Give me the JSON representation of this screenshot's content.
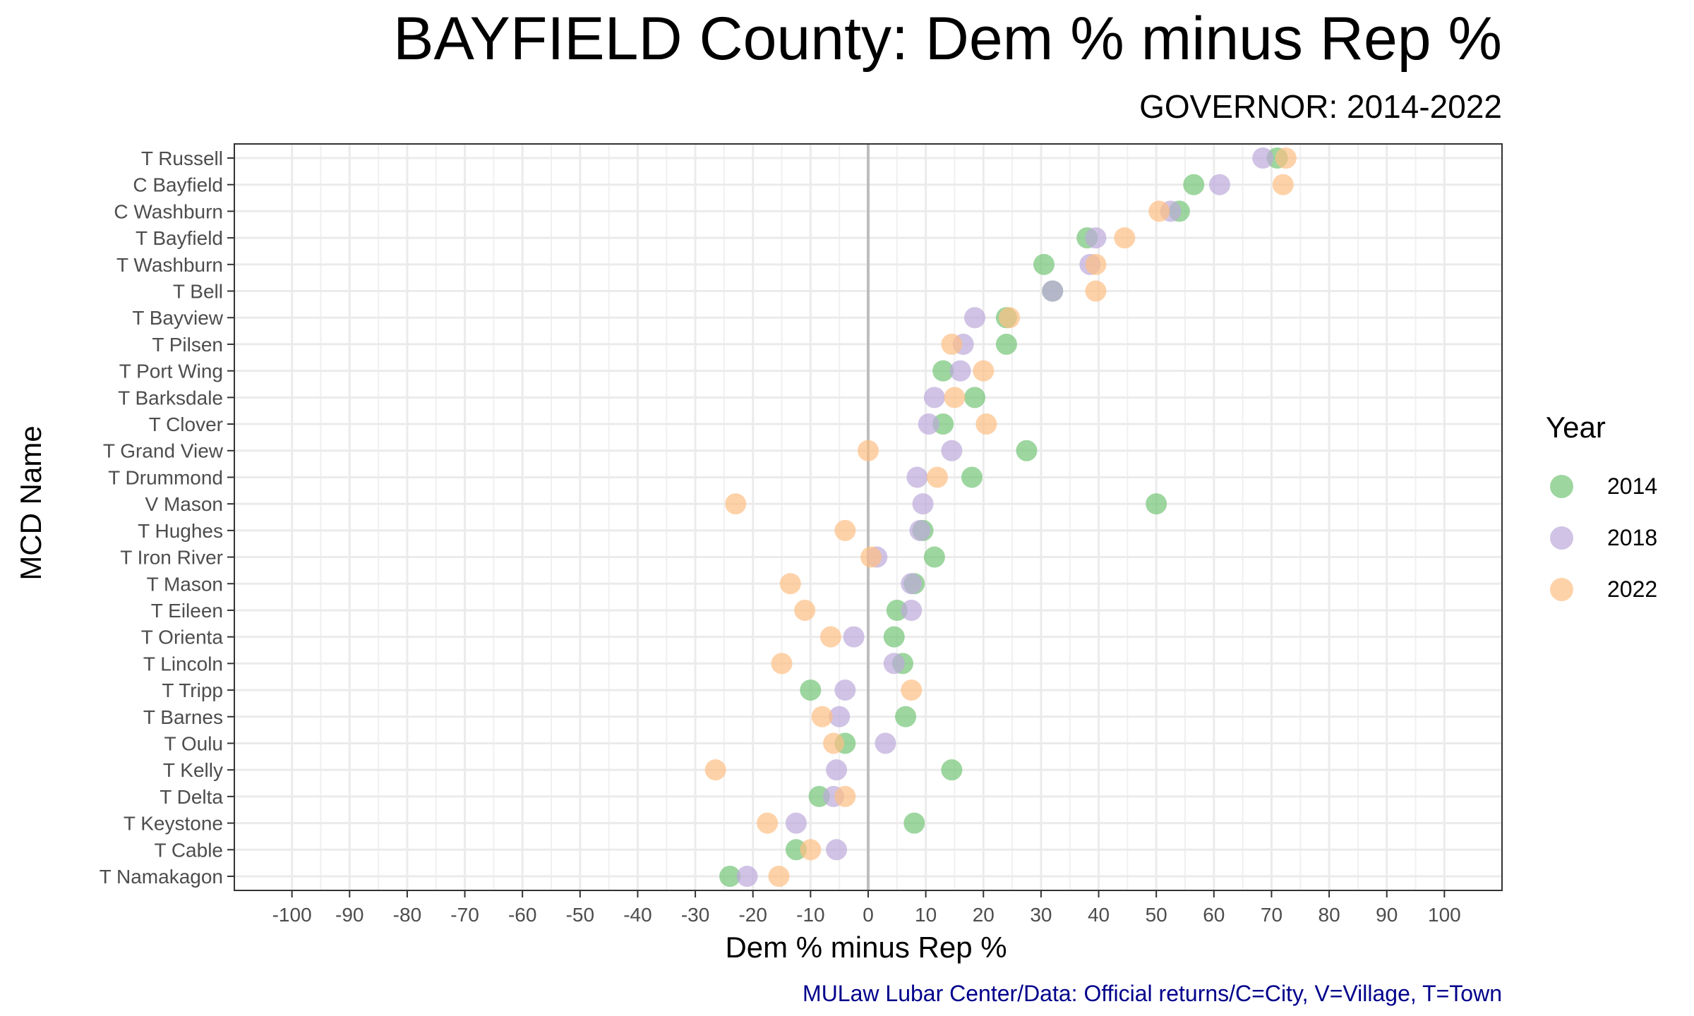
{
  "chart_data": {
    "type": "scatter",
    "title": "BAYFIELD County: Dem % minus Rep %",
    "subtitle": "GOVERNOR: 2014-2022",
    "xlabel": "Dem % minus Rep %",
    "ylabel": "MCD Name",
    "caption": "MULaw Lubar Center/Data: Official returns/C=City, V=Village, T=Town",
    "xlim": [
      -110,
      110
    ],
    "xticks": [
      -100,
      -90,
      -80,
      -70,
      -60,
      -50,
      -40,
      -30,
      -20,
      -10,
      0,
      10,
      20,
      30,
      40,
      50,
      60,
      70,
      80,
      90,
      100
    ],
    "grid": true,
    "legend": {
      "title": "Year",
      "position": "right"
    },
    "categories": [
      "T Russell",
      "C Bayfield",
      "C Washburn",
      "T Bayfield",
      "T Washburn",
      "T Bell",
      "T Bayview",
      "T Pilsen",
      "T Port Wing",
      "T Barksdale",
      "T Clover",
      "T Grand View",
      "T Drummond",
      "V Mason",
      "T Hughes",
      "T Iron River",
      "T Mason",
      "T Eileen",
      "T Orienta",
      "T Lincoln",
      "T Tripp",
      "T Barnes",
      "T Oulu",
      "T Kelly",
      "T Delta",
      "T Keystone",
      "T Cable",
      "T Namakagon"
    ],
    "series": [
      {
        "name": "2014",
        "color": "#74C476",
        "values": [
          71,
          56.5,
          54,
          38,
          30.5,
          32,
          24,
          24,
          13,
          18.5,
          13,
          27.5,
          18,
          50,
          9.5,
          11.5,
          8,
          5,
          4.5,
          6,
          -10,
          6.5,
          -4,
          14.5,
          -8.5,
          8,
          -12.5,
          -24
        ]
      },
      {
        "name": "2018",
        "color": "#BCA9DA",
        "values": [
          68.5,
          61,
          52.5,
          39.5,
          38.5,
          32,
          18.5,
          16.5,
          16,
          11.5,
          10.5,
          14.5,
          8.5,
          9.5,
          9,
          1.5,
          7.5,
          7.5,
          -2.5,
          4.5,
          -4,
          -5,
          3,
          -5.5,
          -6,
          -12.5,
          -5.5,
          -21
        ]
      },
      {
        "name": "2022",
        "color": "#FDBF85",
        "values": [
          72.5,
          72,
          50.5,
          44.5,
          39.5,
          39.5,
          24.5,
          14.5,
          20,
          15,
          20.5,
          0,
          12,
          -23,
          -4,
          0.5,
          -13.5,
          -11,
          -6.5,
          -15,
          7.5,
          -8,
          -6,
          -26.5,
          -4,
          -17.5,
          -10,
          -15.5
        ]
      }
    ]
  }
}
